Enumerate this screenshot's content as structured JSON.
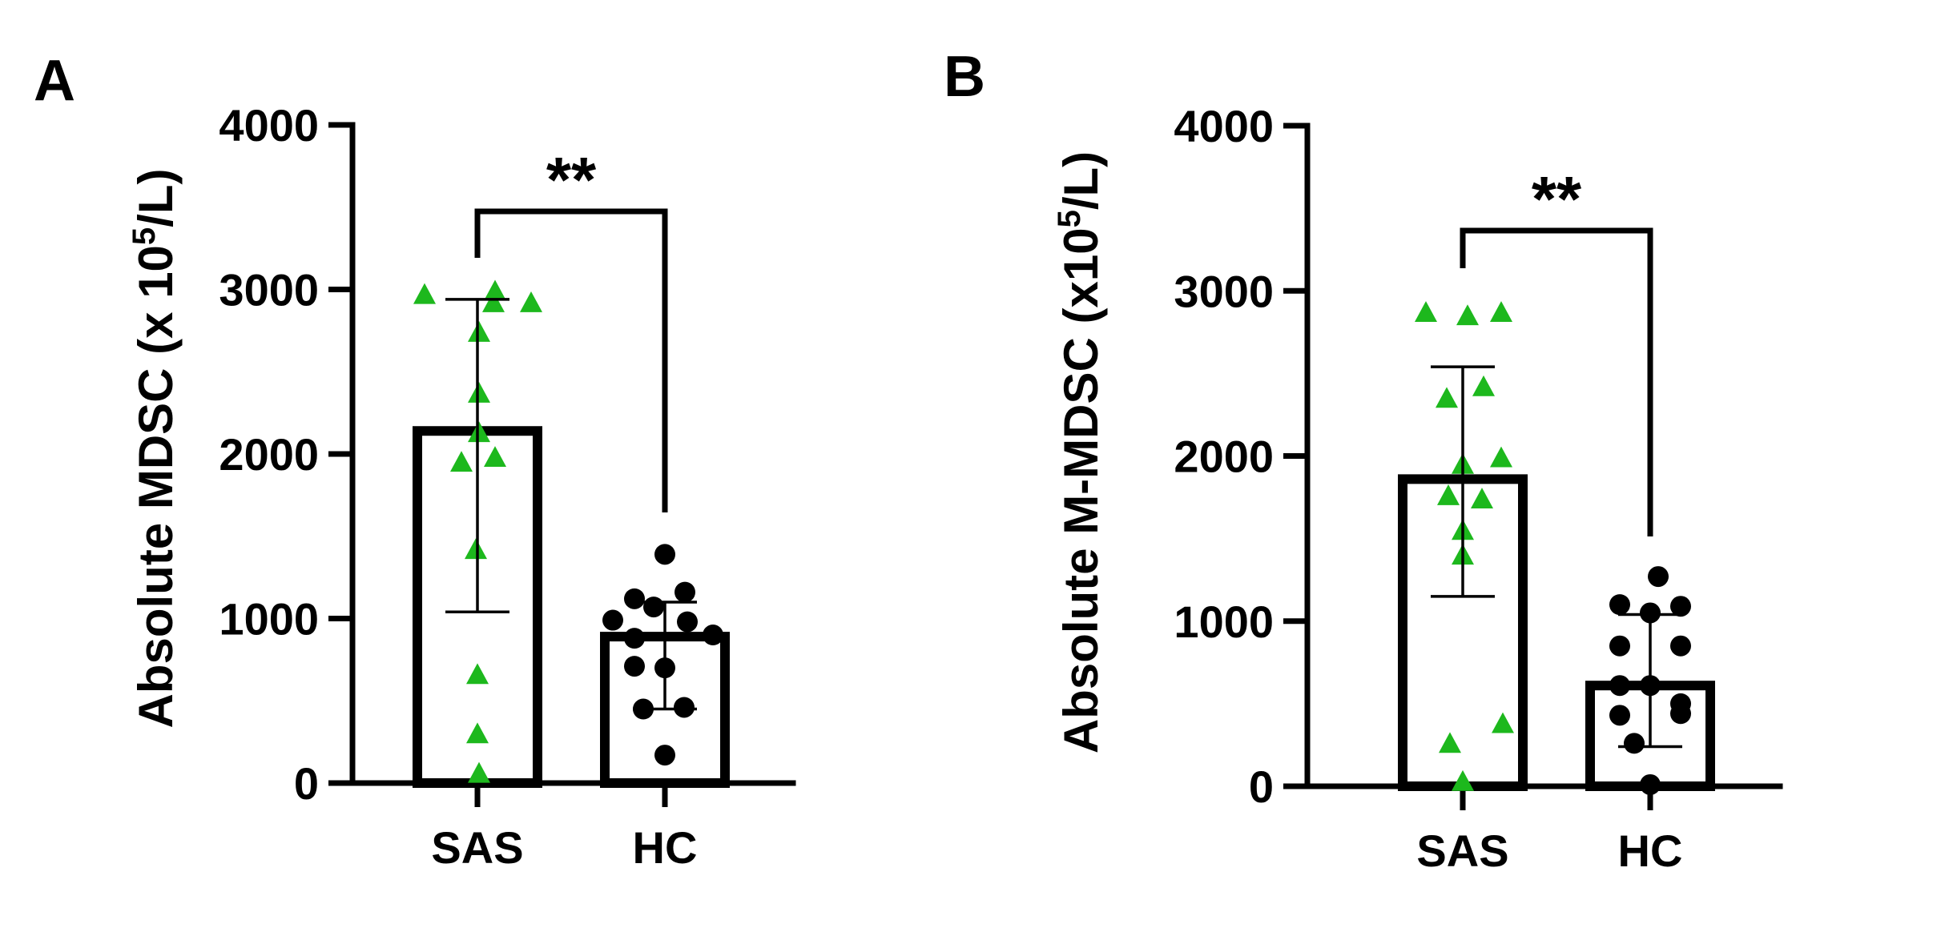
{
  "chart_data": [
    {
      "type": "bar",
      "panel_label": "A",
      "ylabel": "Absolute MDSC (x 10",
      "ylabel_sup": "5",
      "ylabel_end": "/L)",
      "ylim": [
        0,
        4000
      ],
      "yticks": [
        "0",
        "1000",
        "2000",
        "3000",
        "4000"
      ],
      "categories": [
        "SAS",
        "HC"
      ],
      "values": [
        2140,
        890
      ],
      "error_low": [
        1040,
        450
      ],
      "error_high": [
        2940,
        1100
      ],
      "significance": "**",
      "points": [
        {
          "category": "SAS",
          "marker": "triangle",
          "color": "#1db81d",
          "y": [
            2970,
            2920,
            2990,
            2920,
            2740,
            2370,
            2130,
            1950,
            1980,
            1420,
            660,
            300,
            60
          ]
        },
        {
          "category": "HC",
          "marker": "circle",
          "color": "#000000",
          "y": [
            1390,
            1120,
            1160,
            990,
            980,
            900,
            1070,
            880,
            700,
            710,
            450,
            460,
            170
          ]
        }
      ]
    },
    {
      "type": "bar",
      "panel_label": "B",
      "ylabel": "Absolute M-MDSC (x10",
      "ylabel_sup": "5",
      "ylabel_end": "/L)",
      "ylim": [
        0,
        4000
      ],
      "yticks": [
        "0",
        "1000",
        "2000",
        "3000",
        "4000"
      ],
      "categories": [
        "SAS",
        "HC"
      ],
      "values": [
        1860,
        610
      ],
      "error_low": [
        1150,
        240
      ],
      "error_high": [
        2540,
        1040
      ],
      "significance": "**",
      "points": [
        {
          "category": "SAS",
          "marker": "triangle",
          "color": "#1db81d",
          "y": [
            2870,
            2850,
            2870,
            2350,
            2420,
            1950,
            1990,
            1760,
            1740,
            1550,
            1400,
            380,
            260,
            30
          ]
        },
        {
          "category": "HC",
          "marker": "circle",
          "color": "#000000",
          "y": [
            1270,
            1100,
            1090,
            1050,
            850,
            850,
            610,
            610,
            500,
            430,
            440,
            260,
            10
          ]
        }
      ]
    }
  ]
}
